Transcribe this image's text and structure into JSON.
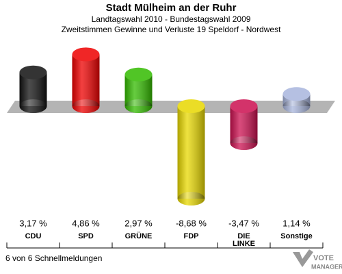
{
  "chart_data": {
    "type": "bar",
    "title": "Stadt Mülheim an der Ruhr",
    "subtitle": [
      "Landtagswahl 2010 - Bundestagswahl 2009",
      "Zweitstimmen Gewinne und Verluste 19 Speldorf - Nordwest"
    ],
    "categories": [
      "CDU",
      "SPD",
      "GRÜNE",
      "FDP",
      "DIE LINKE",
      "Sonstige"
    ],
    "values": [
      3.17,
      4.86,
      2.97,
      -8.68,
      -3.47,
      1.14
    ],
    "value_labels": [
      "3,17 %",
      "4,86 %",
      "2,97 %",
      "-8,68 %",
      "-3,47 %",
      "1,14 %"
    ],
    "colors": [
      "#111111",
      "#ee0000",
      "#33bb00",
      "#e8d800",
      "#cc1050",
      "#a9b6dd"
    ],
    "footer": "6 von 6 Schnellmeldungen",
    "logo": [
      "VOTE",
      "MANAGER"
    ]
  }
}
